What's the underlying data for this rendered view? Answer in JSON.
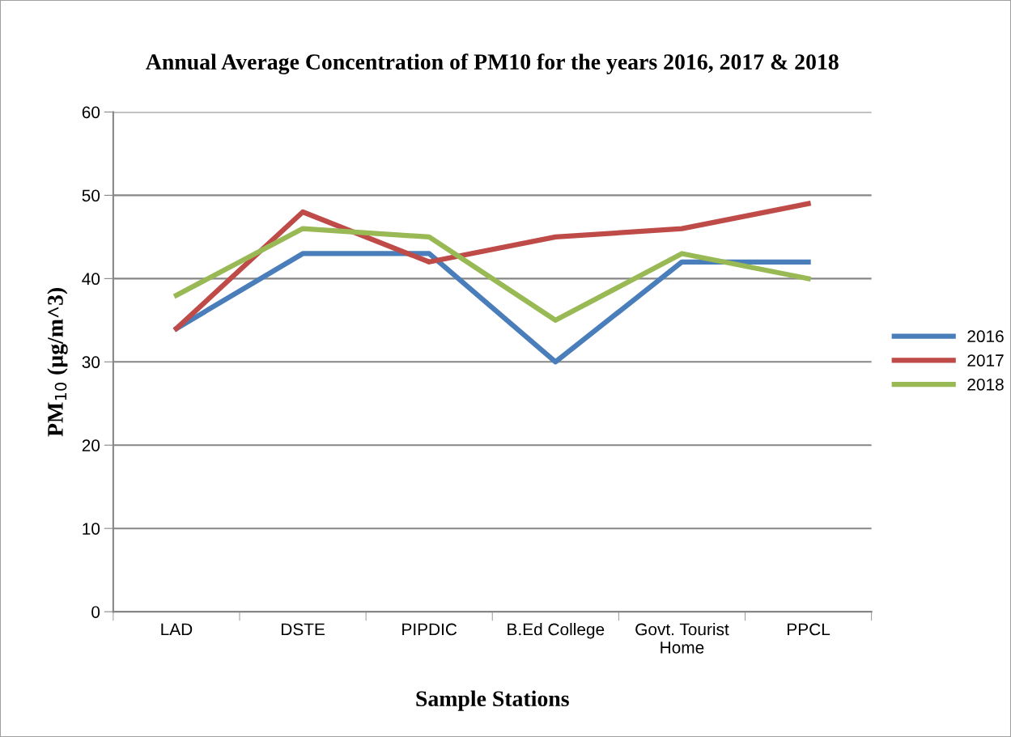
{
  "chart_data": {
    "type": "line",
    "title": "Annual Average Concentration of PM10 for the years 2016, 2017 & 2018",
    "xlabel": "Sample Stations",
    "ylabel": "PM$_{10}$ (µg/m^3)",
    "categories": [
      "LAD",
      "DSTE",
      "PIPDIC",
      "B.Ed College",
      "Govt. Tourist\nHome",
      "PPCL"
    ],
    "series": [
      {
        "name": "2016",
        "color": "#4a7ebb",
        "values": [
          34,
          43,
          43,
          30,
          42,
          42
        ]
      },
      {
        "name": "2017",
        "color": "#be4b48",
        "values": [
          34,
          48,
          42,
          45,
          46,
          49
        ]
      },
      {
        "name": "2018",
        "color": "#98b954",
        "values": [
          38,
          46,
          45,
          35,
          43,
          40
        ]
      }
    ],
    "ylim": [
      0,
      60
    ],
    "yticks": [
      0,
      10,
      20,
      30,
      40,
      50,
      60
    ],
    "grid": "y",
    "legend": "right",
    "marker": "none",
    "line_style": "solid"
  }
}
